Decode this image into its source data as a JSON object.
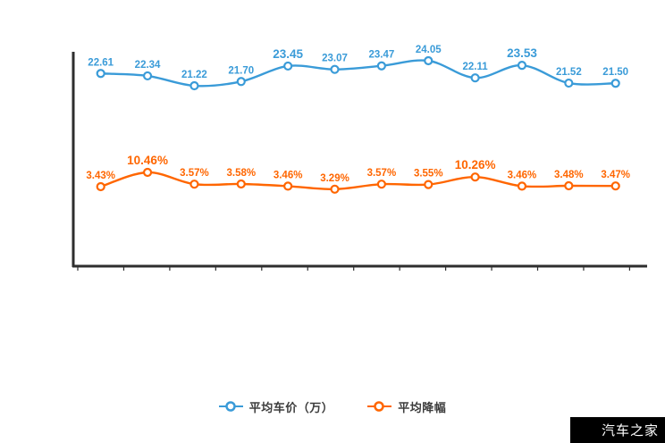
{
  "watermark": {
    "text": "汽车之家",
    "bg_color": "#000000",
    "text_color": "#ffffff"
  },
  "legend": [
    {
      "label": "平均车价（万）",
      "color": "#3a9bd8"
    },
    {
      "label": "平均降幅",
      "color": "#ff6600"
    }
  ],
  "chart_data": {
    "type": "line",
    "title": "",
    "x_axis": {
      "tick_labels_visible": false,
      "num_points": 12,
      "tick_marks": 13
    },
    "y_axis": {
      "tick_labels_visible": false
    },
    "grid": false,
    "legend_position": "bottom",
    "colors": {
      "axis": "#2e2e2e",
      "blue": "#3a9bd8",
      "orange": "#ff6600"
    },
    "series": [
      {
        "name": "平均车价（万）",
        "color": "#3a9bd8",
        "values": [
          22.61,
          22.34,
          21.22,
          21.7,
          23.45,
          23.07,
          23.47,
          24.05,
          22.11,
          23.53,
          21.52,
          21.5
        ],
        "labels": [
          "22.61",
          "22.34",
          "21.22",
          "21.70",
          "23.45",
          "23.07",
          "23.47",
          "24.05",
          "22.11",
          "23.53",
          "21.52",
          "21.50"
        ],
        "highlight_indices": [
          4,
          9
        ]
      },
      {
        "name": "平均降幅",
        "color": "#ff6600",
        "values": [
          3.43,
          10.46,
          3.57,
          3.58,
          3.46,
          3.29,
          3.57,
          3.55,
          10.26,
          3.46,
          3.48,
          3.47
        ],
        "labels": [
          "3.43%",
          "10.46%",
          "3.57%",
          "3.58%",
          "3.46%",
          "3.29%",
          "3.57%",
          "3.55%",
          "10.26%",
          "3.46%",
          "3.48%",
          "3.47%"
        ],
        "highlight_indices": [
          1,
          8
        ]
      }
    ]
  }
}
